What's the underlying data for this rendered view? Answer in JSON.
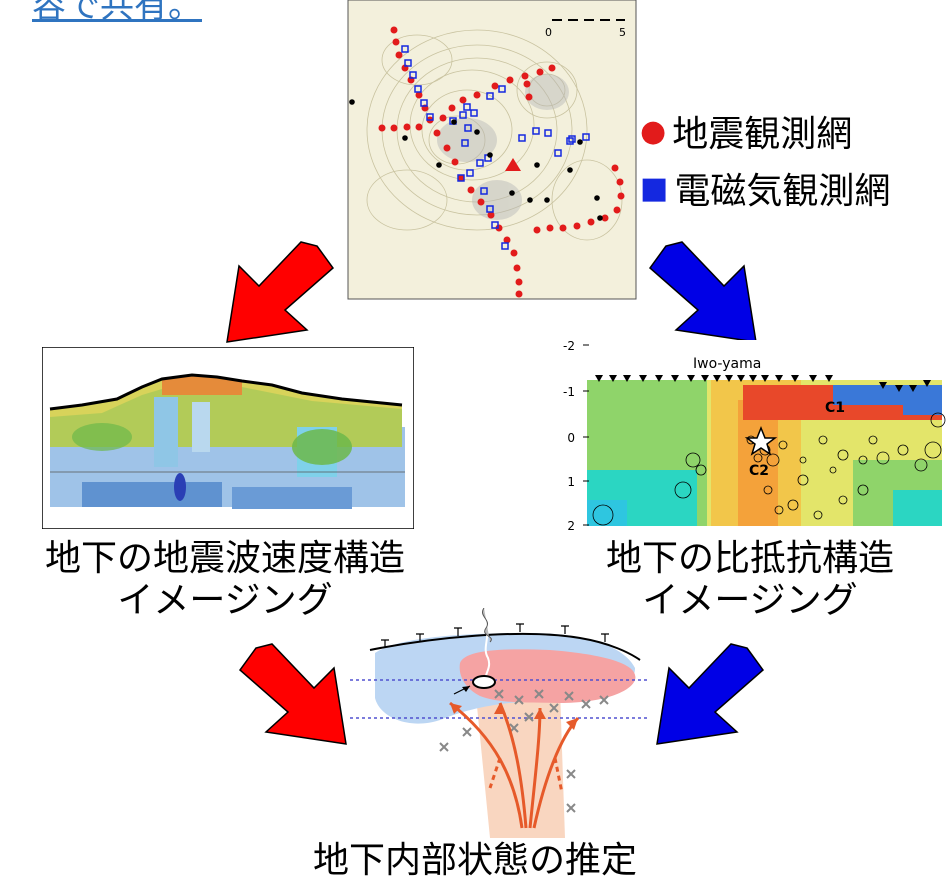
{
  "top_link": "容で共有。",
  "map": {
    "scale_labels": [
      "0",
      "5"
    ]
  },
  "legend": {
    "seismic": {
      "label": "地震観測網",
      "marker": "●",
      "color": "#e21b1b"
    },
    "em": {
      "label": "電磁気観測網",
      "marker": "■",
      "color": "#1428e0"
    }
  },
  "resistivity": {
    "label": "Iwo-yama",
    "y_ticks": [
      "-2",
      "-1",
      "0",
      "1",
      "2"
    ],
    "annotations": [
      "C1",
      "C2"
    ]
  },
  "captions": {
    "velocity": [
      "地下の地震波速度構造",
      "イメージング"
    ],
    "resistivity": [
      "地下の比抵抗構造",
      "イメージング"
    ],
    "inference": "地下内部状態の推定"
  },
  "arrow_colors": {
    "red": "#ff0000",
    "blue": "#0000e6"
  }
}
